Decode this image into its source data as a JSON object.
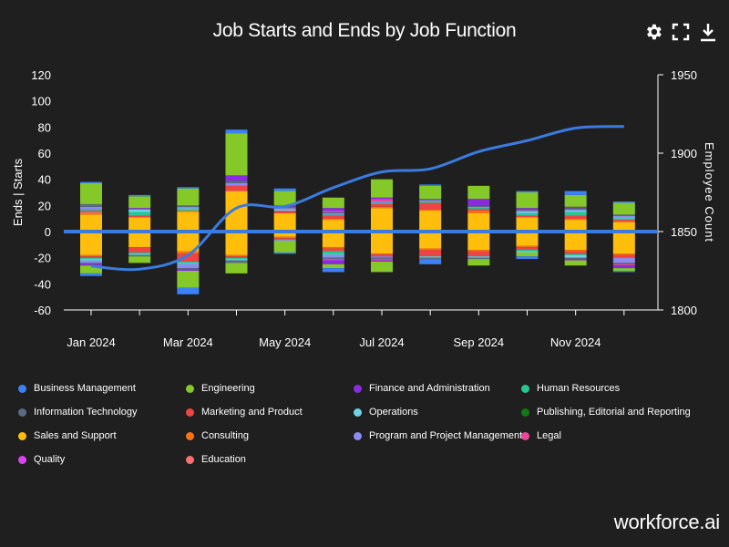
{
  "header": {
    "title": "Job Starts and Ends by Job Function",
    "toolbar": [
      {
        "name": "settings-button",
        "icon": "gear-icon"
      },
      {
        "name": "fullscreen-button",
        "icon": "expand-icon"
      },
      {
        "name": "download-button",
        "icon": "download-icon"
      }
    ]
  },
  "brand": {
    "text": "workforce",
    "suffix": ".ai"
  },
  "colors": {
    "background": "#1f1f1f",
    "line": "#3b7be0",
    "zero_line": "#3b7be0",
    "Business Management": "#3b82f6",
    "Engineering": "#84c928",
    "Finance and Administration": "#8a2be2",
    "Human Resources": "#27c790",
    "Information Technology": "#5b6b82",
    "Marketing and Product": "#ef4444",
    "Operations": "#6fd3e8",
    "Publishing, Editorial and Reporting": "#137a13",
    "Sales and Support": "#ffbe0b",
    "Consulting": "#f97316",
    "Program and Project Management": "#8c8cf0",
    "Legal": "#ec4899",
    "Quality": "#d946ef",
    "Education": "#f87171"
  },
  "chart_data": {
    "type": "bar",
    "title": "Job Starts and Ends by Job Function",
    "ylabel": "Ends | Starts",
    "y2label": "Employee Count",
    "ylim": [
      -60,
      120
    ],
    "yticks": [
      120,
      100,
      80,
      60,
      40,
      20,
      0,
      -20,
      -40,
      -60
    ],
    "y2lim": [
      1800,
      1950
    ],
    "y2ticks": [
      1950,
      1900,
      1850,
      1800
    ],
    "grid": false,
    "legend_position": "bottom",
    "categories": [
      "Jan 2024",
      "Feb 2024",
      "Mar 2024",
      "Apr 2024",
      "May 2024",
      "Jun 2024",
      "Jul 2024",
      "Aug 2024",
      "Sep 2024",
      "Oct 2024",
      "Nov 2024",
      "Dec 2024"
    ],
    "x_tick_labels": [
      "Jan 2024",
      "Mar 2024",
      "May 2024",
      "Jul 2024",
      "Sep 2024",
      "Nov 2024"
    ],
    "stack_order": [
      "Sales and Support",
      "Consulting",
      "Education",
      "Marketing and Product",
      "Human Resources",
      "Operations",
      "Program and Project Management",
      "Information Technology",
      "Legal",
      "Quality",
      "Finance and Administration",
      "Engineering",
      "Business Management",
      "Publishing, Editorial and Reporting"
    ],
    "series": [
      {
        "name": "Business Management",
        "starts": [
          1,
          1,
          1,
          3,
          2,
          0,
          0,
          1,
          0,
          1,
          3,
          1
        ],
        "ends": [
          -2,
          0,
          -5,
          0,
          -1,
          -3,
          0,
          -4,
          0,
          -2,
          0,
          -1
        ]
      },
      {
        "name": "Engineering",
        "starts": [
          16,
          9,
          13,
          32,
          11,
          8,
          14,
          10,
          10,
          12,
          9,
          9
        ],
        "ends": [
          -6,
          -5,
          -13,
          -8,
          -9,
          -3,
          -8,
          0,
          -5,
          -3,
          -4,
          -2
        ]
      },
      {
        "name": "Finance and Administration",
        "starts": [
          0,
          1,
          0,
          4,
          1,
          2,
          1,
          0,
          5,
          1,
          1,
          0
        ],
        "ends": [
          -1,
          0,
          -1,
          0,
          0,
          -3,
          -1,
          0,
          0,
          0,
          -1,
          -2
        ]
      },
      {
        "name": "Human Resources",
        "starts": [
          1,
          3,
          1,
          0,
          0,
          1,
          1,
          1,
          1,
          2,
          3,
          1
        ],
        "ends": [
          -1,
          -1,
          -1,
          -1,
          0,
          -2,
          0,
          0,
          0,
          -1,
          -1,
          0
        ]
      },
      {
        "name": "Information Technology",
        "starts": [
          2,
          0,
          1,
          2,
          1,
          1,
          0,
          1,
          1,
          1,
          1,
          1
        ],
        "ends": [
          -1,
          -1,
          -1,
          -2,
          0,
          -1,
          -1,
          -1,
          -1,
          0,
          -1,
          -1
        ]
      },
      {
        "name": "Marketing and Product",
        "starts": [
          1,
          1,
          0,
          4,
          2,
          2,
          2,
          5,
          1,
          1,
          2,
          1
        ],
        "ends": [
          -1,
          -4,
          -6,
          -1,
          -1,
          -2,
          -2,
          -5,
          -4,
          -2,
          -2,
          -2
        ]
      },
      {
        "name": "Operations",
        "starts": [
          0,
          2,
          1,
          0,
          1,
          0,
          0,
          0,
          0,
          1,
          1,
          1
        ],
        "ends": [
          -1,
          -1,
          -1,
          -1,
          0,
          -1,
          0,
          -1,
          -1,
          -1,
          -2,
          0
        ]
      },
      {
        "name": "Publishing, Editorial and Reporting",
        "starts": [
          0,
          0,
          0,
          0,
          0,
          0,
          0,
          0,
          0,
          0,
          0,
          0
        ],
        "ends": [
          0,
          0,
          0,
          0,
          0,
          0,
          0,
          0,
          0,
          0,
          0,
          0
        ]
      },
      {
        "name": "Sales and Support",
        "starts": [
          13,
          11,
          15,
          31,
          14,
          9,
          18,
          16,
          14,
          11,
          9,
          7
        ],
        "ends": [
          -18,
          -12,
          -15,
          -18,
          -4,
          -12,
          -17,
          -13,
          -14,
          -11,
          -14,
          -17
        ]
      },
      {
        "name": "Consulting",
        "starts": [
          1,
          0,
          1,
          0,
          0,
          1,
          1,
          1,
          2,
          0,
          1,
          1
        ],
        "ends": [
          -1,
          0,
          -2,
          -1,
          -1,
          -1,
          0,
          -1,
          -1,
          -1,
          -1,
          -1
        ]
      },
      {
        "name": "Program and Project Management",
        "starts": [
          2,
          0,
          1,
          2,
          1,
          1,
          1,
          1,
          1,
          1,
          1,
          1
        ],
        "ends": [
          -2,
          0,
          -3,
          0,
          -1,
          -2,
          -1,
          0,
          0,
          0,
          0,
          -4
        ]
      },
      {
        "name": "Legal",
        "starts": [
          0,
          0,
          0,
          0,
          0,
          0,
          2,
          0,
          0,
          0,
          0,
          0
        ],
        "ends": [
          0,
          0,
          0,
          0,
          0,
          0,
          -1,
          0,
          0,
          0,
          0,
          -1
        ]
      },
      {
        "name": "Quality",
        "starts": [
          0,
          0,
          0,
          0,
          0,
          1,
          0,
          0,
          0,
          0,
          0,
          0
        ],
        "ends": [
          0,
          0,
          0,
          0,
          0,
          -1,
          0,
          0,
          0,
          0,
          0,
          0
        ]
      },
      {
        "name": "Education",
        "starts": [
          1,
          0,
          0,
          0,
          0,
          0,
          0,
          0,
          0,
          0,
          0,
          0
        ],
        "ends": [
          0,
          0,
          0,
          0,
          0,
          0,
          0,
          0,
          0,
          0,
          0,
          0
        ]
      }
    ],
    "line": {
      "name": "Employee Count",
      "x": [
        "Jan 2024",
        "Feb 2024",
        "Mar 2024",
        "Apr 2024",
        "May 2024",
        "Jun 2024",
        "Jul 2024",
        "Aug 2024",
        "Sep 2024",
        "Oct 2024",
        "Nov 2024",
        "Dec 2024"
      ],
      "values": [
        1828,
        1826,
        1835,
        1865,
        1866,
        1878,
        1888,
        1890,
        1901,
        1908,
        1916,
        1917
      ]
    }
  },
  "legend": {
    "items": [
      "Business Management",
      "Engineering",
      "Finance and Administration",
      "Human Resources",
      "Information Technology",
      "Marketing and Product",
      "Operations",
      "Publishing, Editorial and Reporting",
      "Sales and Support",
      "Consulting",
      "Program and Project Management",
      "Legal",
      "Quality",
      "Education"
    ]
  }
}
